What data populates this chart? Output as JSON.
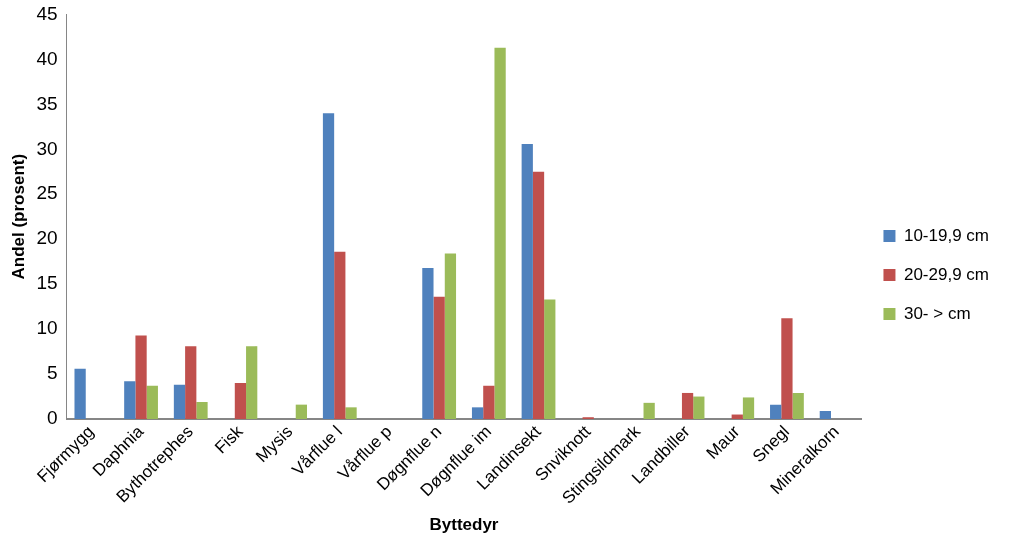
{
  "chart_data": {
    "type": "bar",
    "xlabel": "Byttedyr",
    "ylabel": "Andel (prosent)",
    "categories": [
      "Fjørmygg",
      "Daphnia",
      "Bythotrephes",
      "Fisk",
      "Mysis",
      "Vårflue l",
      "Vårflue p",
      "Døgnflue n",
      "Døgnflue im",
      "Landinsekt",
      "Snviknott",
      "Stingsildmark",
      "Landbiller",
      "Maur",
      "Snegl",
      "Mineralkorn"
    ],
    "series": [
      {
        "name": "10-19,9 cm",
        "color": "#4f81bd",
        "values": [
          5.6,
          4.2,
          3.8,
          null,
          null,
          34.0,
          null,
          16.8,
          1.3,
          30.6,
          null,
          null,
          null,
          null,
          1.6,
          0.9
        ]
      },
      {
        "name": "20-29,9 cm",
        "color": "#c0504d",
        "values": [
          null,
          9.3,
          8.1,
          4.0,
          null,
          18.6,
          null,
          13.6,
          3.7,
          27.5,
          0.2,
          null,
          2.9,
          0.5,
          11.2,
          null
        ]
      },
      {
        "name": "30- > cm",
        "color": "#9bbb59",
        "values": [
          null,
          3.7,
          1.9,
          8.1,
          1.6,
          1.3,
          null,
          18.4,
          41.3,
          13.3,
          null,
          1.8,
          2.5,
          2.4,
          2.9,
          null
        ]
      }
    ],
    "ylim": [
      0,
      45
    ],
    "yticks": [
      0,
      5,
      10,
      15,
      20,
      25,
      30,
      35,
      40,
      45
    ],
    "grid": false,
    "legend": "right"
  }
}
